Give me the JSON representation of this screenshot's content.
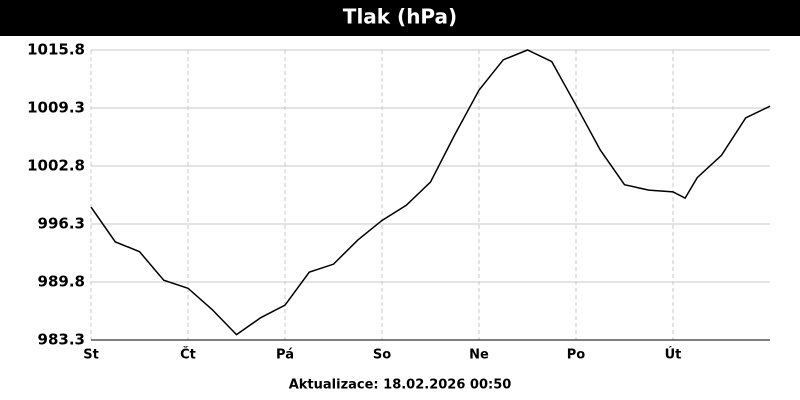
{
  "chart_data": {
    "type": "line",
    "title": "Tlak (hPa)",
    "footer": "Aktualizace: 18.02.2026 00:50",
    "x": [
      0,
      6,
      12,
      18,
      24,
      30,
      36,
      42,
      48,
      54,
      60,
      66,
      72,
      78,
      84,
      90,
      96,
      102,
      108,
      114,
      120,
      126,
      132,
      138,
      144,
      147,
      150,
      156,
      162,
      168
    ],
    "series": [
      {
        "name": "Tlak",
        "color": "#000000",
        "values": [
          998.2,
          994.3,
          993.2,
          990.0,
          989.1,
          986.7,
          983.9,
          985.8,
          987.2,
          990.9,
          991.8,
          994.5,
          996.7,
          998.4,
          1001.0,
          1006.3,
          1011.3,
          1014.7,
          1015.8,
          1014.5,
          1009.6,
          1004.6,
          1000.7,
          1000.1,
          999.9,
          999.2,
          1001.5,
          1004.0,
          1008.2,
          1009.5
        ]
      }
    ],
    "xlim": [
      0,
      168
    ],
    "xticks": [
      {
        "value": 0,
        "label": "St"
      },
      {
        "value": 24,
        "label": "Čt"
      },
      {
        "value": 48,
        "label": "Pá"
      },
      {
        "value": 72,
        "label": "So"
      },
      {
        "value": 96,
        "label": "Ne"
      },
      {
        "value": 120,
        "label": "Po"
      },
      {
        "value": 144,
        "label": "Út"
      }
    ],
    "ylim": [
      983.3,
      1015.8
    ],
    "yticks": [
      983.3,
      989.8,
      996.3,
      1002.8,
      1009.3,
      1015.8
    ],
    "grid": true
  }
}
